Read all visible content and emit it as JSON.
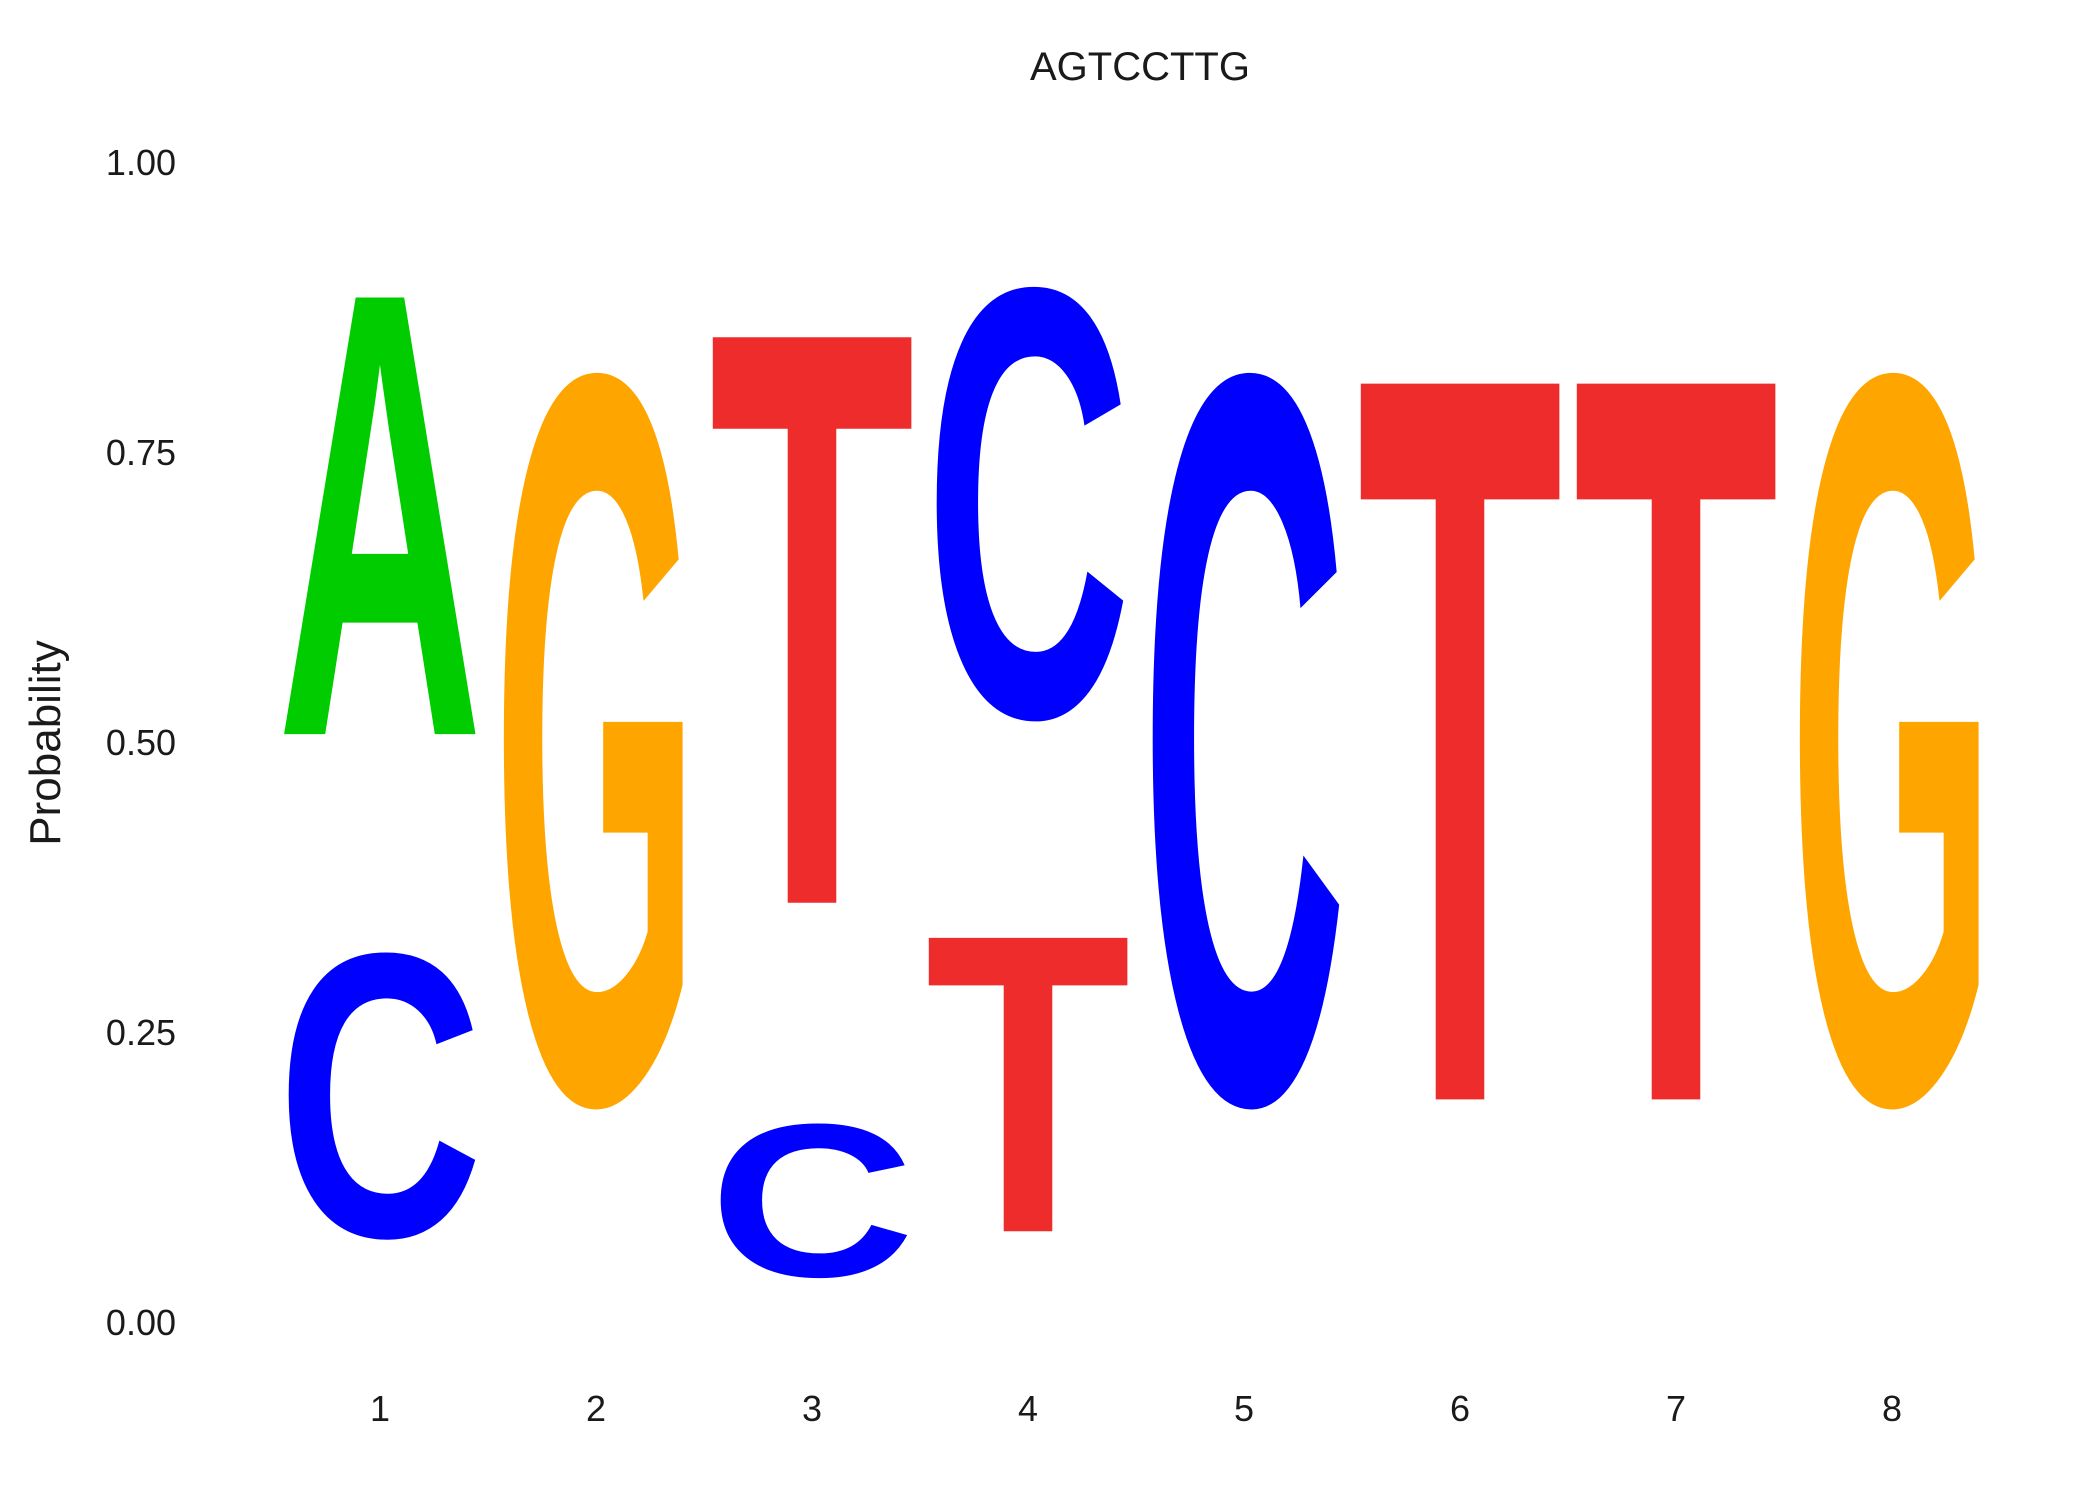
{
  "chart_data": {
    "type": "sequence-logo",
    "title": "AGTCCTTG",
    "xlabel": "",
    "ylabel": "Probability",
    "ylim": [
      0,
      1
    ],
    "yticks": [
      "0.00",
      "0.25",
      "0.50",
      "0.75",
      "1.00"
    ],
    "yticks_values": [
      0,
      0.25,
      0.5,
      0.75,
      1.0
    ],
    "grid": false,
    "positions": [
      {
        "label": "1",
        "letters": [
          {
            "base": "C",
            "prob": 0.39
          },
          {
            "base": "A",
            "prob": 0.61
          }
        ]
      },
      {
        "label": "2",
        "letters": [
          {
            "base": "G",
            "prob": 1.0
          }
        ]
      },
      {
        "label": "3",
        "letters": [
          {
            "base": "C",
            "prob": 0.21
          },
          {
            "base": "T",
            "prob": 0.79
          }
        ]
      },
      {
        "label": "4",
        "letters": [
          {
            "base": "T",
            "prob": 0.41
          },
          {
            "base": "C",
            "prob": 0.59
          }
        ]
      },
      {
        "label": "5",
        "letters": [
          {
            "base": "C",
            "prob": 1.0
          }
        ]
      },
      {
        "label": "6",
        "letters": [
          {
            "base": "T",
            "prob": 1.0
          }
        ]
      },
      {
        "label": "7",
        "letters": [
          {
            "base": "T",
            "prob": 1.0
          }
        ]
      },
      {
        "label": "8",
        "letters": [
          {
            "base": "G",
            "prob": 1.0
          }
        ]
      }
    ],
    "colors": {
      "A": "#00cc00",
      "C": "#0000ff",
      "G": "#ffa500",
      "T": "#ee2c2c"
    }
  }
}
